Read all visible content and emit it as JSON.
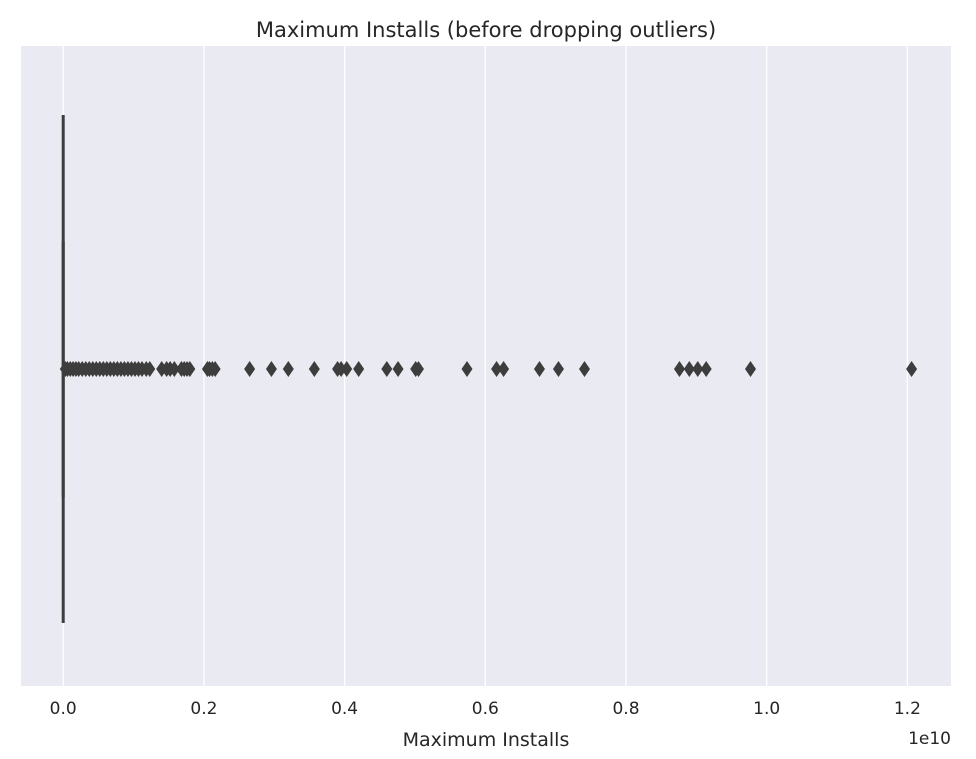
{
  "chart_data": {
    "type": "boxplot",
    "orientation": "horizontal",
    "title": "Maximum Installs (before dropping outliers)",
    "xlabel": "Maximum Installs",
    "ylabel": "",
    "x_offset_label": "1e10",
    "xlim": [
      -0.06,
      1.262
    ],
    "x_scale_note": "values in units of 1e10",
    "xticks": [
      0.0,
      0.2,
      0.4,
      0.6,
      0.8,
      1.0,
      1.2
    ],
    "xtick_labels": [
      "0.0",
      "0.2",
      "0.4",
      "0.6",
      "0.8",
      "1.0",
      "1.2"
    ],
    "grid": true,
    "box": {
      "q1": 0.0,
      "median": 0.0,
      "q3": 0.0,
      "whisker_low": 0.0,
      "whisker_high": 0.0
    },
    "outliers": [
      0.003,
      0.006,
      0.01,
      0.014,
      0.018,
      0.022,
      0.027,
      0.032,
      0.037,
      0.042,
      0.047,
      0.052,
      0.057,
      0.062,
      0.067,
      0.072,
      0.077,
      0.082,
      0.087,
      0.092,
      0.097,
      0.102,
      0.107,
      0.112,
      0.118,
      0.123,
      0.14,
      0.147,
      0.152,
      0.158,
      0.168,
      0.172,
      0.176,
      0.18,
      0.205,
      0.208,
      0.212,
      0.216,
      0.265,
      0.296,
      0.32,
      0.357,
      0.39,
      0.395,
      0.403,
      0.42,
      0.46,
      0.476,
      0.501,
      0.505,
      0.574,
      0.616,
      0.626,
      0.677,
      0.704,
      0.741,
      0.876,
      0.89,
      0.902,
      0.914,
      0.977,
      1.206
    ]
  },
  "colors": {
    "background": "#eaeaf2",
    "grid": "#ffffff",
    "marker": "#3d3d3d"
  }
}
